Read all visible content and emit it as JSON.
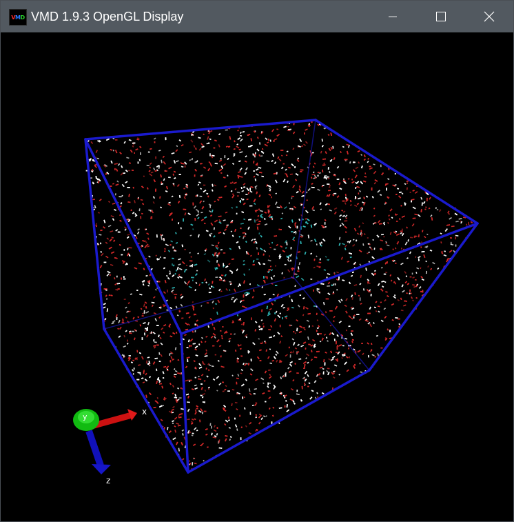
{
  "window": {
    "title": "VMD 1.9.3 OpenGL Display",
    "icon_name": "vmd-app-icon",
    "icon_letters": [
      "V",
      "M",
      "D"
    ],
    "icon_letter_colors": [
      "#ff2a2a",
      "#2a7bff",
      "#2ad12a"
    ],
    "controls": [
      {
        "name": "minimize-button",
        "icon": "minimize-icon"
      },
      {
        "name": "maximize-button",
        "icon": "maximize-icon"
      },
      {
        "name": "close-button",
        "icon": "close-icon"
      }
    ]
  },
  "scene": {
    "box_color": "#1a1acd",
    "atom_colors": {
      "oxygen": "#d42a2a",
      "hydrogen": "#ffffff",
      "solute": "#2fb6b6"
    },
    "axes": {
      "x": {
        "label": "x",
        "color": "#cc1111"
      },
      "y": {
        "label": "y",
        "color": "#11bb11"
      },
      "z": {
        "label": "z",
        "color": "#1111bb"
      }
    }
  }
}
